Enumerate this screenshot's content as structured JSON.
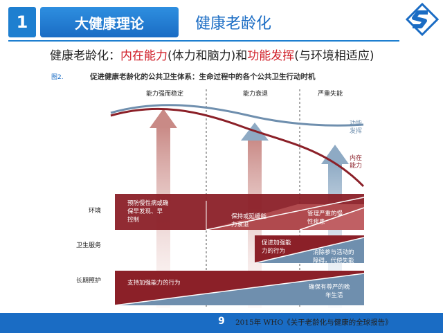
{
  "header": {
    "number": "1",
    "section_title": "大健康理论",
    "topic_title": "健康老龄化"
  },
  "subtitle": {
    "lead": "健康老龄化：",
    "term1": "内在能力",
    "paren1": "(体力和脑力)",
    "and": "和",
    "term2": "功能发挥",
    "paren2": "(与环境相适应)"
  },
  "figure": {
    "label": "图2.",
    "title": "促进健康老龄化的公共卫生体系：生命过程中的各个公共卫生行动时机",
    "phases": [
      "能力强而稳定",
      "能力衰退",
      "严重失能"
    ],
    "curve_labels": {
      "functional_ability": [
        "功能",
        "发挥"
      ],
      "intrinsic_capacity": [
        "内在",
        "能力"
      ]
    },
    "row_labels": [
      "环境",
      "卫生服务",
      "长期照护"
    ],
    "environment": {
      "box1": [
        "预防慢性病或确",
        "保早发现、早",
        "控制"
      ],
      "box2": [
        "保持或延缓能",
        "力衰退"
      ],
      "box3": [
        "管理严重的慢",
        "性疾患"
      ]
    },
    "health_services": {
      "box1": [
        "促进加强能",
        "力的行为"
      ],
      "box2": [
        "消除参与活动的",
        "障碍，代偿失能"
      ]
    },
    "long_term_care": {
      "box1": [
        "支持加强能力的行为"
      ],
      "box2": [
        "确保有尊严的晚",
        "年生活"
      ]
    }
  },
  "colors": {
    "brand_blue": "#1a6cc4",
    "dark_red": "#8b2028",
    "steel_blue": "#6f8fae",
    "accent_red": "#d0202a"
  },
  "footer": {
    "page_number": "9",
    "source": "2015年 WHO《关于老龄化与健康的全球报告》"
  }
}
